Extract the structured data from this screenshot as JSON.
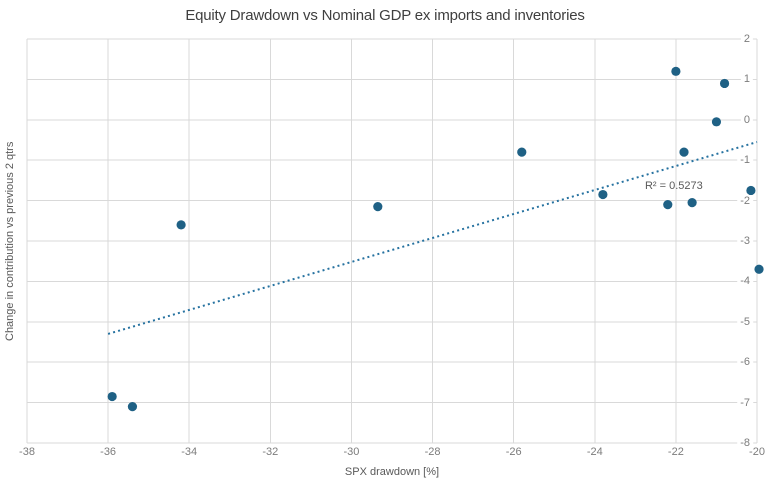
{
  "chart_data": {
    "type": "scatter",
    "title": "Equity Drawdown vs Nominal GDP ex imports and inventories",
    "xlabel": "SPX drawdown [%]",
    "ylabel": "Change in contribution vs previous 2 qtrs",
    "xlim": [
      -38,
      -20
    ],
    "ylim": [
      -8,
      2
    ],
    "x_ticks": [
      -38,
      -36,
      -34,
      -32,
      -30,
      -28,
      -26,
      -24,
      -22,
      -20
    ],
    "y_ticks": [
      2,
      1,
      0,
      -1,
      -2,
      -3,
      -4,
      -5,
      -6,
      -7,
      -8
    ],
    "grid": true,
    "legend": "none",
    "y_axis_side": "right",
    "points": [
      [
        -35.9,
        -6.85
      ],
      [
        -35.4,
        -7.1
      ],
      [
        -34.2,
        -2.6
      ],
      [
        -29.35,
        -2.15
      ],
      [
        -25.8,
        -0.8
      ],
      [
        -23.8,
        -1.85
      ],
      [
        -22.2,
        -2.1
      ],
      [
        -22.0,
        1.2
      ],
      [
        -21.8,
        -0.8
      ],
      [
        -21.6,
        -2.05
      ],
      [
        -21.0,
        -0.05
      ],
      [
        -20.8,
        0.9
      ],
      [
        -20.15,
        -1.75
      ],
      [
        -19.95,
        -3.7
      ]
    ],
    "trendline": {
      "style": "dotted",
      "x1": -36,
      "y1": -5.3,
      "x2": -20,
      "y2": -0.55
    },
    "annotation": {
      "text": "R² = 0.5273",
      "x": -22.05,
      "y": -1.65
    },
    "colors": {
      "point": "#1f6185",
      "trend": "#2672a0",
      "grid": "#d9d9d9",
      "tick_text": "#7c7c7c",
      "axis_title_text": "#595959",
      "title_text": "#3f3f3f"
    }
  }
}
